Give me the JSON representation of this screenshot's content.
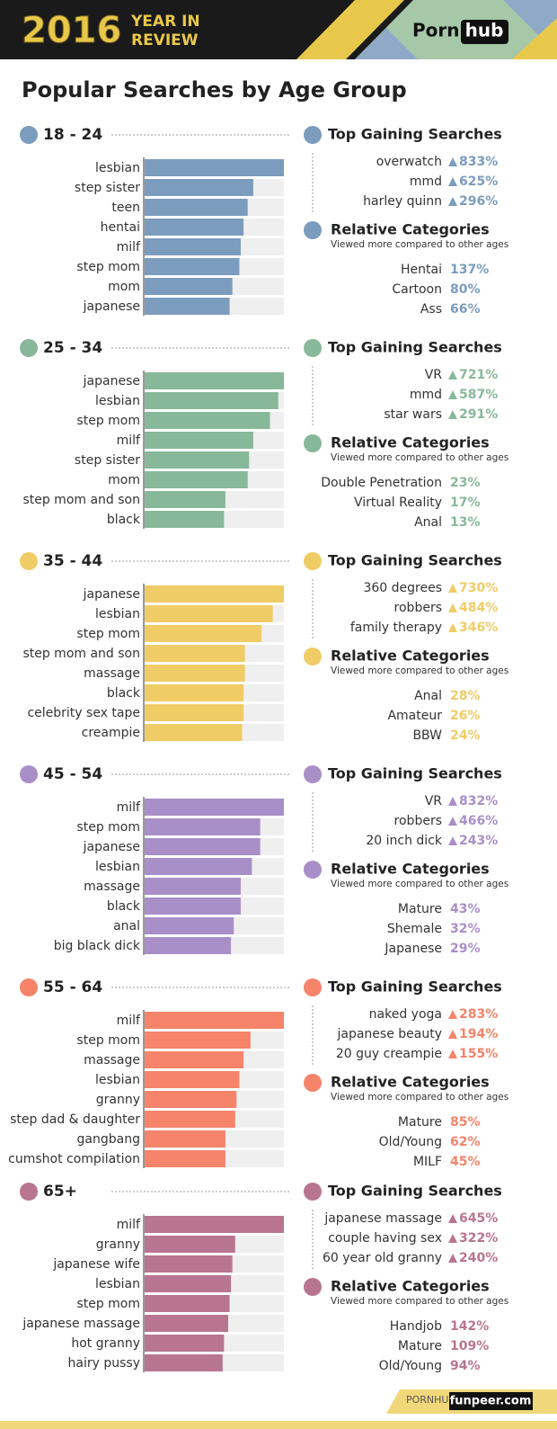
{
  "header": {
    "year": "2016",
    "line1": "YEAR IN",
    "line2": "REVIEW",
    "logo_left": "Porn",
    "logo_right": "hub"
  },
  "title": "Popular Searches by Age Group",
  "labels": {
    "top_gaining": "Top Gaining Searches",
    "relative": "Relative Categories",
    "relative_note": "Viewed more compared to other ages"
  },
  "chart_data": [
    {
      "type": "bar",
      "orientation": "horizontal",
      "title": "18 - 24",
      "color": "#7b9cbd",
      "xlim": [
        0,
        100
      ],
      "categories": [
        "lesbian",
        "step sister",
        "teen",
        "hentai",
        "milf",
        "step mom",
        "mom",
        "japanese"
      ],
      "values": [
        100,
        78,
        74,
        71,
        69,
        68,
        63,
        61
      ]
    },
    {
      "type": "bar",
      "orientation": "horizontal",
      "title": "25 - 34",
      "color": "#88b89a",
      "xlim": [
        0,
        100
      ],
      "categories": [
        "japanese",
        "lesbian",
        "step mom",
        "milf",
        "step sister",
        "mom",
        "step mom and son",
        "black"
      ],
      "values": [
        100,
        96,
        90,
        78,
        75,
        74,
        58,
        57
      ]
    },
    {
      "type": "bar",
      "orientation": "horizontal",
      "title": "35 - 44",
      "color": "#f0cc66",
      "xlim": [
        0,
        100
      ],
      "categories": [
        "japanese",
        "lesbian",
        "step mom",
        "step mom and son",
        "massage",
        "black",
        "celebrity sex tape",
        "creampie"
      ],
      "values": [
        100,
        92,
        84,
        72,
        72,
        71,
        71,
        70
      ]
    },
    {
      "type": "bar",
      "orientation": "horizontal",
      "title": "45 - 54",
      "color": "#a98fc8",
      "xlim": [
        0,
        100
      ],
      "categories": [
        "milf",
        "step mom",
        "japanese",
        "lesbian",
        "massage",
        "black",
        "anal",
        "big black dick"
      ],
      "values": [
        100,
        83,
        83,
        77,
        69,
        69,
        64,
        62
      ]
    },
    {
      "type": "bar",
      "orientation": "horizontal",
      "title": "55 - 64",
      "color": "#f5846a",
      "xlim": [
        0,
        100
      ],
      "categories": [
        "milf",
        "step mom",
        "massage",
        "lesbian",
        "granny",
        "step dad & daughter",
        "gangbang",
        "cumshot compilation"
      ],
      "values": [
        100,
        76,
        71,
        68,
        66,
        65,
        58,
        58
      ]
    },
    {
      "type": "bar",
      "orientation": "horizontal",
      "title": "65+",
      "color": "#b87590",
      "xlim": [
        0,
        100
      ],
      "categories": [
        "milf",
        "granny",
        "japanese wife",
        "lesbian",
        "step mom",
        "japanese massage",
        "hot granny",
        "hairy pussy"
      ],
      "values": [
        100,
        65,
        63,
        62,
        61,
        60,
        57,
        56
      ]
    }
  ],
  "sections": [
    {
      "top_gaining": [
        {
          "term": "overwatch",
          "change": "833%"
        },
        {
          "term": "mmd",
          "change": "625%"
        },
        {
          "term": "harley quinn",
          "change": "296%"
        }
      ],
      "relative": [
        {
          "category": "Hentai",
          "share": "137%"
        },
        {
          "category": "Cartoon",
          "share": "80%"
        },
        {
          "category": "Ass",
          "share": "66%"
        }
      ]
    },
    {
      "top_gaining": [
        {
          "term": "VR",
          "change": "721%"
        },
        {
          "term": "mmd",
          "change": "587%"
        },
        {
          "term": "star wars",
          "change": "291%"
        }
      ],
      "relative": [
        {
          "category": "Double Penetration",
          "share": "23%"
        },
        {
          "category": "Virtual Reality",
          "share": "17%"
        },
        {
          "category": "Anal",
          "share": "13%"
        }
      ]
    },
    {
      "top_gaining": [
        {
          "term": "360 degrees",
          "change": "730%"
        },
        {
          "term": "robbers",
          "change": "484%"
        },
        {
          "term": "family therapy",
          "change": "346%"
        }
      ],
      "relative": [
        {
          "category": "Anal",
          "share": "28%"
        },
        {
          "category": "Amateur",
          "share": "26%"
        },
        {
          "category": "BBW",
          "share": "24%"
        }
      ]
    },
    {
      "top_gaining": [
        {
          "term": "VR",
          "change": "832%"
        },
        {
          "term": "robbers",
          "change": "466%"
        },
        {
          "term": "20 inch dick",
          "change": "243%"
        }
      ],
      "relative": [
        {
          "category": "Mature",
          "share": "43%"
        },
        {
          "category": "Shemale",
          "share": "32%"
        },
        {
          "category": "Japanese",
          "share": "29%"
        }
      ]
    },
    {
      "top_gaining": [
        {
          "term": "naked yoga",
          "change": "283%"
        },
        {
          "term": "japanese beauty",
          "change": "194%"
        },
        {
          "term": "20 guy creampie",
          "change": "155%"
        }
      ],
      "relative": [
        {
          "category": "Mature",
          "share": "85%"
        },
        {
          "category": "Old/Young",
          "share": "62%"
        },
        {
          "category": "MILF",
          "share": "45%"
        }
      ]
    },
    {
      "top_gaining": [
        {
          "term": "japanese massage",
          "change": "645%"
        },
        {
          "term": "couple having sex",
          "change": "322%"
        },
        {
          "term": "60 year old granny",
          "change": "240%"
        }
      ],
      "relative": [
        {
          "category": "Handjob",
          "share": "142%"
        },
        {
          "category": "Mature",
          "share": "109%"
        },
        {
          "category": "Old/Young",
          "share": "94%"
        }
      ]
    }
  ],
  "footer": {
    "link": "PORNHUB.COM/INSIGHTS",
    "watermark": "funpeer.com"
  }
}
